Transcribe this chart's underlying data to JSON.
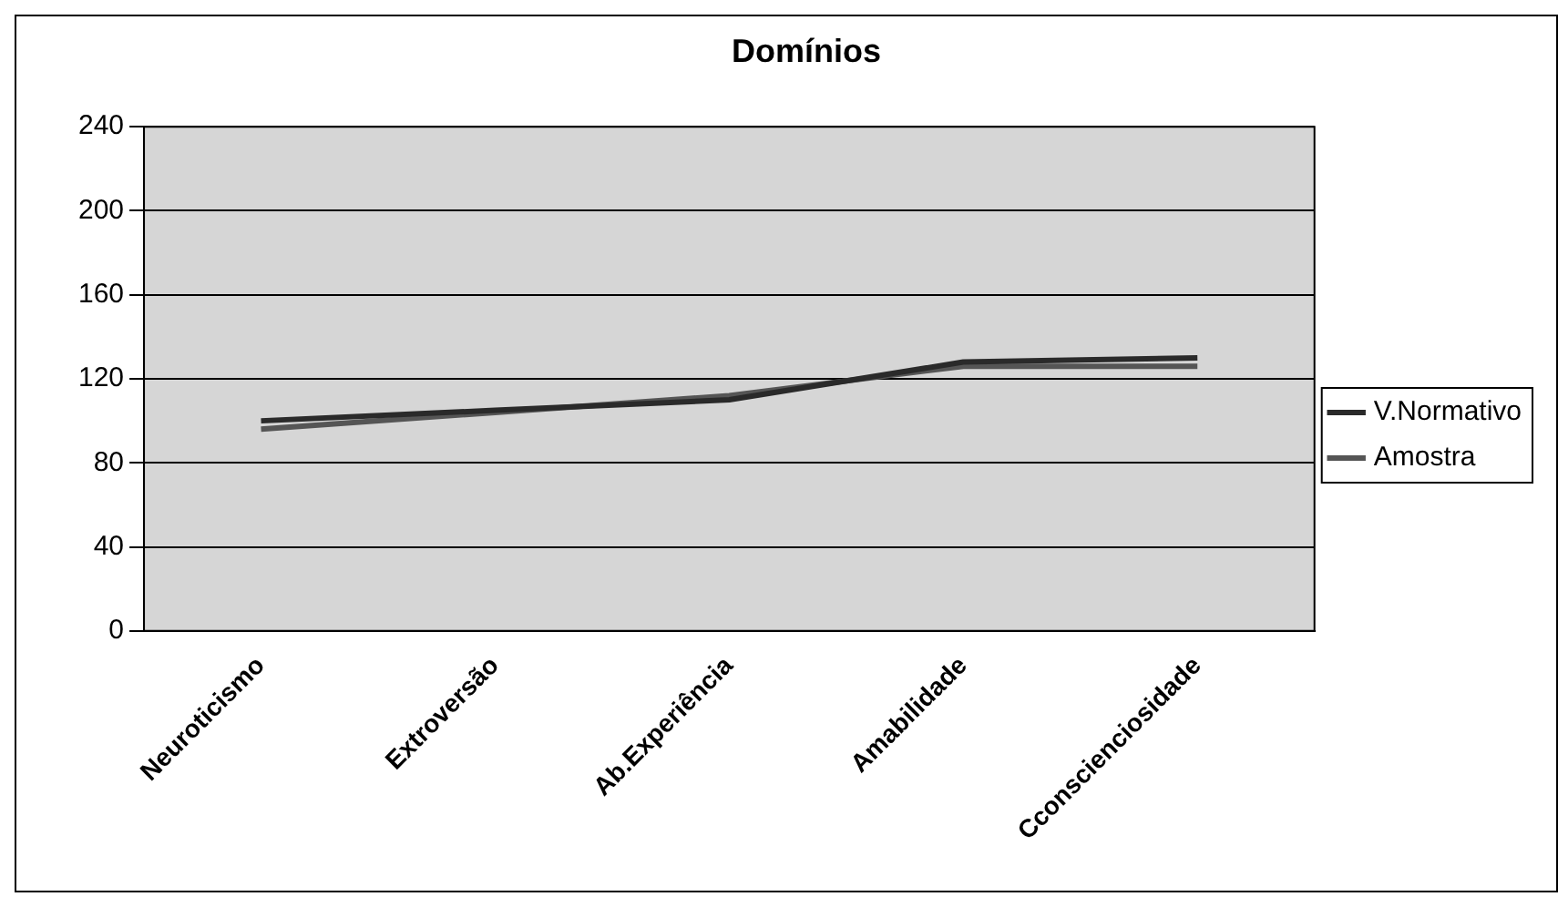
{
  "chart_data": {
    "type": "line",
    "title": "Domínios",
    "categories": [
      "Neuroticismo",
      "Extroversão",
      "Ab.Experiência",
      "Amabilidade",
      "Cconscienciosidade"
    ],
    "series": [
      {
        "name": "V.Normativo",
        "color": "#2a2a2a",
        "values": [
          100,
          105,
          110,
          128,
          130
        ]
      },
      {
        "name": "Amostra",
        "color": "#555555",
        "values": [
          96,
          104,
          112,
          126,
          126
        ]
      }
    ],
    "ylim": [
      0,
      240
    ],
    "yticks": [
      0,
      40,
      80,
      120,
      160,
      200,
      240
    ],
    "grid": "y",
    "legend": "right",
    "marker": "none",
    "line_style": "solid"
  }
}
